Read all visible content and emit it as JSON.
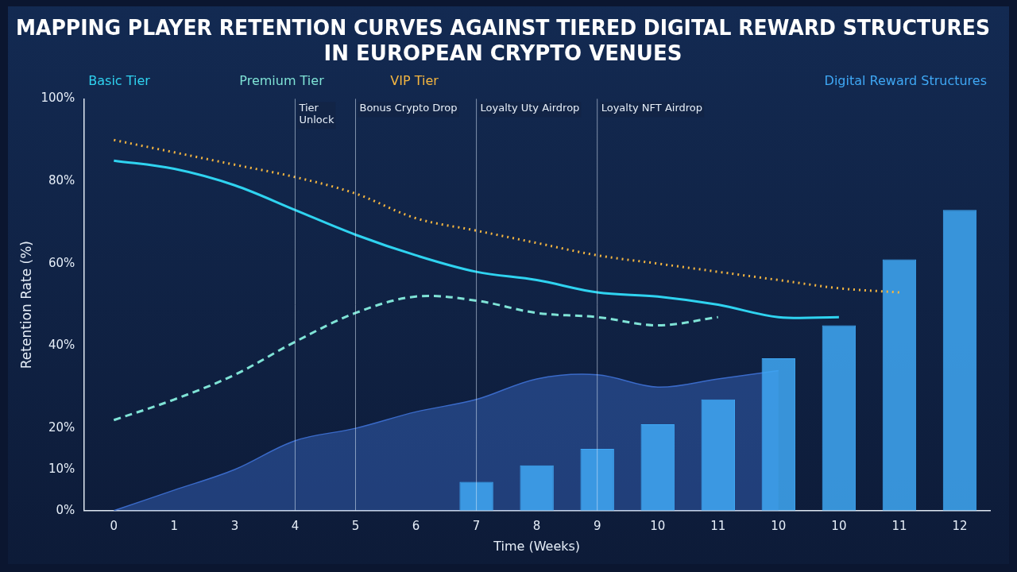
{
  "chart_data": {
    "type": "line",
    "title": "MAPPING PLAYER RETENTION CURVES AGAINST TIERED DIGITAL REWARD STRUCTURES IN EUROPEAN CRYPTO VENUES",
    "x_label": "Time (Weeks)",
    "y_label": "Retention Rate (%)",
    "categories": [
      "0",
      "1",
      "3",
      "4",
      "5",
      "6",
      "7",
      "8",
      "9",
      "10",
      "11",
      "10",
      "10",
      "11",
      "12"
    ],
    "ylim": [
      0,
      100
    ],
    "yticks": [
      {
        "value": 0,
        "label": "0%"
      },
      {
        "value": 10,
        "label": "10%"
      },
      {
        "value": 20,
        "label": "20%"
      },
      {
        "value": 40,
        "label": "40%"
      },
      {
        "value": 60,
        "label": "60%"
      },
      {
        "value": 80,
        "label": "80%"
      },
      {
        "value": 100,
        "label": "100%"
      }
    ],
    "grid": false,
    "legend": "top",
    "series": [
      {
        "name": "Basic Tier",
        "type": "line",
        "color": "#2fd3f0",
        "line_style": "solid",
        "values": [
          85,
          83,
          79,
          73,
          67,
          62,
          58,
          56,
          53,
          52,
          50,
          47,
          47,
          null,
          null
        ]
      },
      {
        "name": "Premium Tier",
        "type": "line",
        "color": "#7fe3d6",
        "line_style": "dashed",
        "values": [
          22,
          27,
          33,
          41,
          48,
          52,
          51,
          48,
          47,
          45,
          47,
          null,
          null,
          null,
          null
        ]
      },
      {
        "name": "VIP Tier",
        "type": "line",
        "color": "#f5b640",
        "line_style": "dotted",
        "values": [
          90,
          87,
          84,
          81,
          77,
          71,
          68,
          65,
          62,
          60,
          58,
          56,
          54,
          53,
          null
        ]
      },
      {
        "type": "area",
        "color": "#3a6ac8",
        "values": [
          0,
          5,
          10,
          17,
          20,
          24,
          27,
          32,
          33,
          30,
          32,
          34,
          null,
          null,
          null
        ]
      },
      {
        "name": "Digital Reward Structures",
        "type": "bar",
        "color": "#3fa8f5",
        "values": [
          null,
          null,
          null,
          null,
          null,
          null,
          7,
          11,
          15,
          21,
          27,
          37,
          45,
          61,
          73
        ]
      }
    ],
    "annotations": [
      {
        "text": "Tier Unlock",
        "x": "4"
      },
      {
        "text": "Bonus Crypto Drop",
        "x": "5"
      },
      {
        "text": "Loyalty Uty Airdrop",
        "x": "7"
      },
      {
        "text": "Loyalty NFT Airdrop",
        "x": "9"
      }
    ]
  }
}
